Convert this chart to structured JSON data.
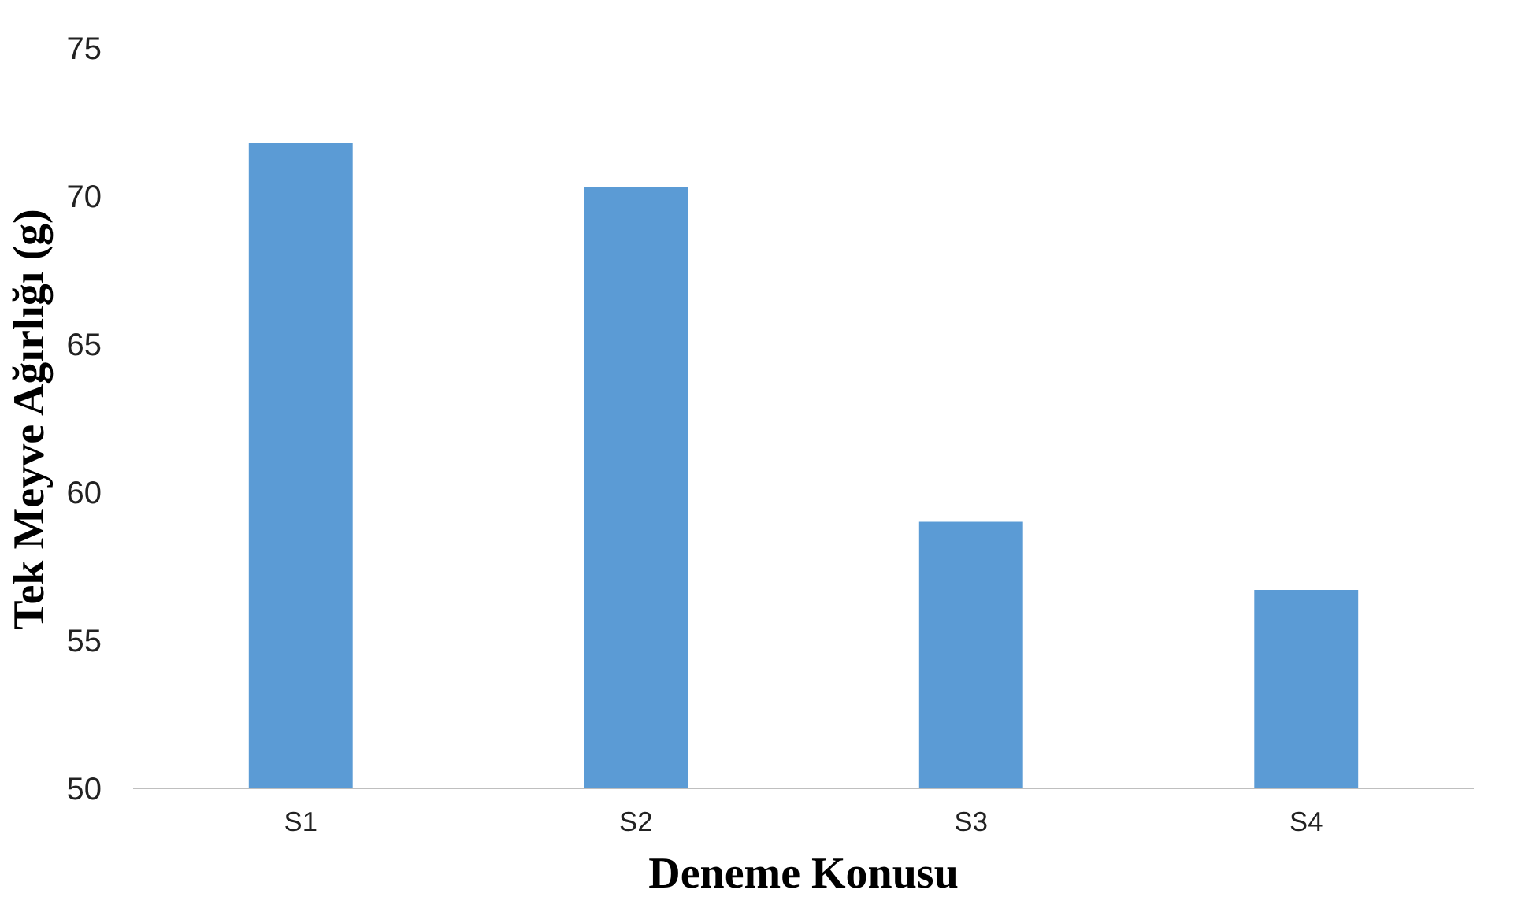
{
  "chart_data": {
    "type": "bar",
    "xlabel": "Deneme Konusu",
    "ylabel": "Tek Meyve Ağırlığı (g)",
    "categories": [
      "S1",
      "S2",
      "S3",
      "S4"
    ],
    "values": [
      71.8,
      70.3,
      59.0,
      56.7
    ],
    "color": "#5b9bd5",
    "ylim": [
      50,
      75
    ],
    "yticks": [
      50,
      55,
      60,
      65,
      70,
      75
    ],
    "grid": false
  }
}
